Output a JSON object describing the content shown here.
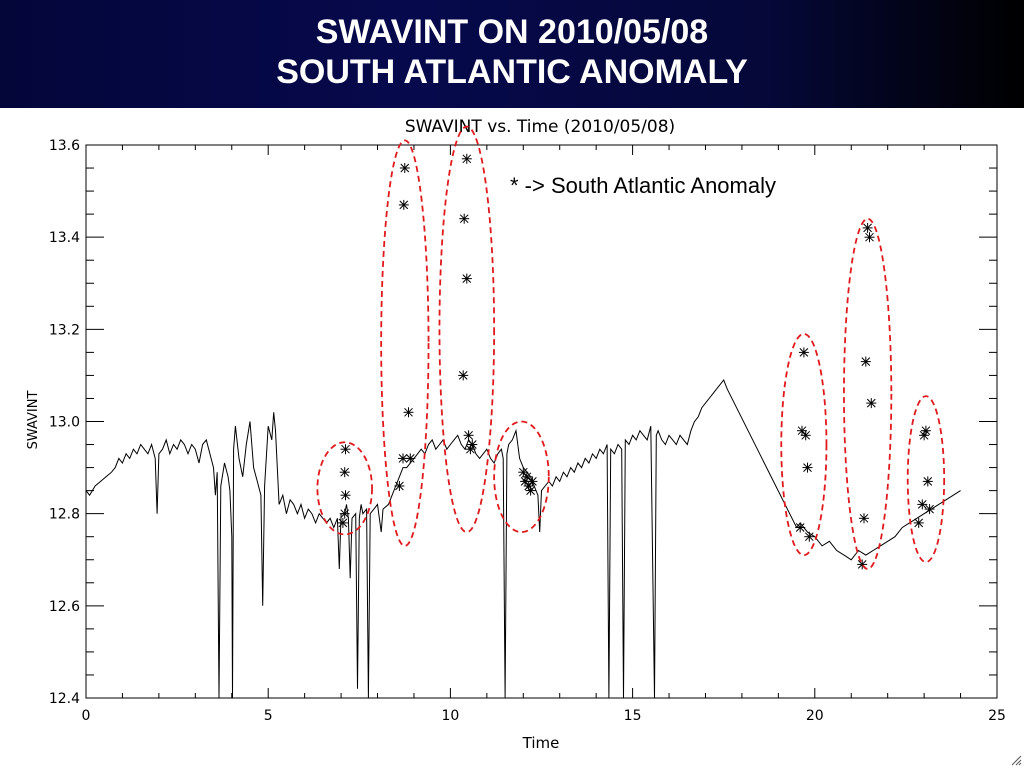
{
  "header": {
    "line1": "SWAVINT ON 2010/05/08",
    "line2": "SOUTH ATLANTIC ANOMALY"
  },
  "chart_data": {
    "type": "line",
    "title": "SWAVINT vs. Time (2010/05/08)",
    "xlabel": "Time",
    "ylabel": "SWAVINT",
    "xlim": [
      0,
      25
    ],
    "ylim": [
      12.4,
      13.6
    ],
    "xticks": [
      0,
      5,
      10,
      15,
      20,
      25
    ],
    "yticks": [
      12.4,
      12.6,
      12.8,
      13.0,
      13.2,
      13.4,
      13.6
    ],
    "ytick_labels": [
      "12.4",
      "12.6",
      "12.8",
      "13.0",
      "13.2",
      "13.4",
      "13.6"
    ],
    "annotation": "* -> South Atlantic Anomaly",
    "grid": false,
    "colors": {
      "line": "#000000",
      "marker": "#000000",
      "ellipse": "#e0191b"
    },
    "series": [
      {
        "values": [
          [
            0.0,
            12.85
          ],
          [
            0.1,
            12.84
          ],
          [
            0.25,
            12.86
          ],
          [
            0.4,
            12.87
          ],
          [
            0.55,
            12.88
          ],
          [
            0.7,
            12.89
          ],
          [
            0.8,
            12.9
          ],
          [
            0.9,
            12.92
          ],
          [
            1.0,
            12.91
          ],
          [
            1.1,
            12.93
          ],
          [
            1.2,
            12.92
          ],
          [
            1.3,
            12.94
          ],
          [
            1.4,
            12.93
          ],
          [
            1.5,
            12.95
          ],
          [
            1.6,
            12.94
          ],
          [
            1.7,
            12.93
          ],
          [
            1.8,
            12.95
          ],
          [
            1.9,
            12.92
          ],
          [
            1.95,
            12.8
          ],
          [
            2.0,
            12.93
          ],
          [
            2.1,
            12.94
          ],
          [
            2.2,
            12.96
          ],
          [
            2.3,
            12.93
          ],
          [
            2.4,
            12.95
          ],
          [
            2.5,
            12.94
          ],
          [
            2.6,
            12.96
          ],
          [
            2.7,
            12.95
          ],
          [
            2.8,
            12.93
          ],
          [
            2.9,
            12.95
          ],
          [
            3.0,
            12.94
          ],
          [
            3.1,
            12.91
          ],
          [
            3.2,
            12.95
          ],
          [
            3.3,
            12.96
          ],
          [
            3.4,
            12.93
          ],
          [
            3.5,
            12.9
          ],
          [
            3.55,
            12.84
          ],
          [
            3.6,
            12.89
          ],
          [
            3.65,
            12.4
          ],
          [
            3.7,
            12.86
          ],
          [
            3.8,
            12.91
          ],
          [
            3.9,
            12.88
          ],
          [
            3.95,
            12.85
          ],
          [
            4.0,
            12.75
          ],
          [
            4.02,
            12.4
          ],
          [
            4.05,
            12.94
          ],
          [
            4.1,
            12.99
          ],
          [
            4.2,
            12.92
          ],
          [
            4.3,
            12.88
          ],
          [
            4.4,
            12.95
          ],
          [
            4.5,
            13.0
          ],
          [
            4.6,
            12.9
          ],
          [
            4.7,
            12.87
          ],
          [
            4.8,
            12.84
          ],
          [
            4.85,
            12.6
          ],
          [
            4.9,
            12.86
          ],
          [
            5.0,
            12.99
          ],
          [
            5.1,
            12.96
          ],
          [
            5.15,
            13.02
          ],
          [
            5.2,
            12.98
          ],
          [
            5.3,
            12.82
          ],
          [
            5.4,
            12.84
          ],
          [
            5.5,
            12.8
          ],
          [
            5.6,
            12.83
          ],
          [
            5.7,
            12.82
          ],
          [
            5.8,
            12.8
          ],
          [
            5.9,
            12.82
          ],
          [
            6.0,
            12.79
          ],
          [
            6.1,
            12.81
          ],
          [
            6.2,
            12.8
          ],
          [
            6.3,
            12.78
          ],
          [
            6.4,
            12.8
          ],
          [
            6.5,
            12.79
          ],
          [
            6.6,
            12.78
          ],
          [
            6.7,
            12.79
          ],
          [
            6.8,
            12.77
          ],
          [
            6.9,
            12.79
          ],
          [
            6.95,
            12.68
          ],
          [
            7.0,
            12.8
          ],
          [
            7.1,
            12.8
          ],
          [
            7.15,
            12.82
          ],
          [
            7.2,
            12.79
          ],
          [
            7.25,
            12.66
          ],
          [
            7.3,
            12.79
          ],
          [
            7.4,
            12.8
          ],
          [
            7.45,
            12.42
          ],
          [
            7.5,
            12.79
          ],
          [
            7.55,
            12.82
          ],
          [
            7.6,
            12.8
          ],
          [
            7.7,
            12.81
          ],
          [
            7.75,
            12.4
          ],
          [
            7.8,
            12.8
          ],
          [
            7.9,
            12.81
          ],
          [
            8.0,
            12.82
          ],
          [
            8.1,
            12.76
          ],
          [
            8.15,
            12.81
          ],
          [
            8.3,
            12.82
          ],
          [
            8.4,
            12.84
          ],
          [
            8.5,
            12.86
          ],
          [
            8.6,
            12.88
          ],
          [
            8.7,
            12.9
          ],
          [
            8.8,
            12.9
          ],
          [
            9.0,
            12.92
          ],
          [
            9.1,
            12.93
          ],
          [
            9.2,
            12.94
          ],
          [
            9.3,
            12.93
          ],
          [
            9.4,
            12.95
          ],
          [
            9.5,
            12.96
          ],
          [
            9.6,
            12.94
          ],
          [
            9.7,
            12.95
          ],
          [
            9.8,
            12.96
          ],
          [
            9.9,
            12.94
          ],
          [
            10.0,
            12.95
          ],
          [
            10.1,
            12.96
          ],
          [
            10.2,
            12.97
          ],
          [
            10.3,
            12.95
          ],
          [
            10.4,
            12.94
          ],
          [
            10.5,
            12.96
          ],
          [
            10.6,
            12.95
          ],
          [
            10.7,
            12.93
          ],
          [
            10.8,
            12.92
          ],
          [
            10.9,
            12.93
          ],
          [
            11.0,
            12.94
          ],
          [
            11.1,
            12.92
          ],
          [
            11.2,
            12.91
          ],
          [
            11.3,
            12.93
          ],
          [
            11.4,
            12.94
          ],
          [
            11.45,
            12.92
          ],
          [
            11.5,
            12.4
          ],
          [
            11.55,
            12.93
          ],
          [
            11.6,
            12.95
          ],
          [
            11.7,
            12.96
          ],
          [
            11.8,
            12.98
          ],
          [
            11.9,
            12.92
          ],
          [
            12.0,
            12.9
          ],
          [
            12.2,
            12.88
          ],
          [
            12.3,
            12.86
          ],
          [
            12.4,
            12.84
          ],
          [
            12.45,
            12.76
          ],
          [
            12.5,
            12.85
          ],
          [
            12.6,
            12.86
          ],
          [
            12.7,
            12.87
          ],
          [
            12.8,
            12.86
          ],
          [
            12.9,
            12.88
          ],
          [
            13.0,
            12.87
          ],
          [
            13.1,
            12.89
          ],
          [
            13.2,
            12.88
          ],
          [
            13.3,
            12.9
          ],
          [
            13.4,
            12.89
          ],
          [
            13.5,
            12.91
          ],
          [
            13.6,
            12.9
          ],
          [
            13.7,
            12.92
          ],
          [
            13.8,
            12.91
          ],
          [
            13.9,
            12.93
          ],
          [
            14.0,
            12.92
          ],
          [
            14.1,
            12.94
          ],
          [
            14.2,
            12.93
          ],
          [
            14.3,
            12.95
          ],
          [
            14.35,
            12.4
          ],
          [
            14.4,
            12.94
          ],
          [
            14.5,
            12.93
          ],
          [
            14.6,
            12.95
          ],
          [
            14.7,
            12.94
          ],
          [
            14.75,
            12.4
          ],
          [
            14.8,
            12.96
          ],
          [
            14.9,
            12.95
          ],
          [
            15.0,
            12.97
          ],
          [
            15.1,
            12.96
          ],
          [
            15.2,
            12.98
          ],
          [
            15.3,
            12.97
          ],
          [
            15.4,
            12.96
          ],
          [
            15.5,
            12.99
          ],
          [
            15.6,
            12.4
          ],
          [
            15.65,
            12.97
          ],
          [
            15.7,
            12.98
          ],
          [
            15.8,
            12.96
          ],
          [
            15.9,
            12.95
          ],
          [
            16.0,
            12.97
          ],
          [
            16.1,
            12.96
          ],
          [
            16.2,
            12.95
          ],
          [
            16.3,
            12.97
          ],
          [
            16.4,
            12.96
          ],
          [
            16.5,
            12.95
          ],
          [
            16.6,
            12.98
          ],
          [
            16.7,
            13.0
          ],
          [
            16.8,
            13.01
          ],
          [
            16.9,
            13.03
          ],
          [
            17.0,
            13.04
          ],
          [
            17.1,
            13.05
          ],
          [
            17.2,
            13.06
          ],
          [
            17.3,
            13.07
          ],
          [
            17.4,
            13.08
          ],
          [
            17.5,
            13.09
          ],
          [
            17.6,
            13.07
          ],
          [
            19.5,
            12.77
          ],
          [
            19.6,
            12.78
          ],
          [
            19.8,
            12.76
          ],
          [
            20.0,
            12.75
          ],
          [
            20.2,
            12.73
          ],
          [
            20.4,
            12.74
          ],
          [
            20.6,
            12.72
          ],
          [
            20.8,
            12.71
          ],
          [
            21.0,
            12.7
          ],
          [
            21.2,
            12.72
          ],
          [
            21.4,
            12.71
          ],
          [
            21.6,
            12.72
          ],
          [
            21.8,
            12.73
          ],
          [
            22.0,
            12.74
          ],
          [
            22.2,
            12.75
          ],
          [
            22.4,
            12.77
          ],
          [
            22.6,
            12.78
          ],
          [
            22.8,
            12.79
          ],
          [
            23.0,
            12.8
          ],
          [
            23.2,
            12.81
          ],
          [
            23.4,
            12.82
          ],
          [
            23.6,
            12.83
          ],
          [
            23.8,
            12.84
          ],
          [
            24.0,
            12.85
          ]
        ]
      }
    ],
    "saa_markers": [
      [
        7.05,
        12.78
      ],
      [
        7.1,
        12.8
      ],
      [
        7.12,
        12.84
      ],
      [
        7.1,
        12.89
      ],
      [
        7.12,
        12.94
      ],
      [
        8.6,
        12.86
      ],
      [
        8.7,
        12.92
      ],
      [
        8.72,
        13.47
      ],
      [
        8.75,
        13.55
      ],
      [
        8.85,
        13.02
      ],
      [
        8.9,
        12.92
      ],
      [
        10.35,
        13.1
      ],
      [
        10.38,
        13.44
      ],
      [
        10.45,
        13.31
      ],
      [
        10.45,
        13.57
      ],
      [
        10.5,
        12.97
      ],
      [
        10.55,
        12.94
      ],
      [
        10.6,
        12.95
      ],
      [
        12.0,
        12.89
      ],
      [
        12.05,
        12.87
      ],
      [
        12.1,
        12.88
      ],
      [
        12.15,
        12.86
      ],
      [
        12.2,
        12.85
      ],
      [
        12.25,
        12.87
      ],
      [
        19.6,
        12.77
      ],
      [
        19.65,
        12.98
      ],
      [
        19.7,
        13.15
      ],
      [
        19.75,
        12.97
      ],
      [
        19.8,
        12.9
      ],
      [
        19.85,
        12.75
      ],
      [
        21.3,
        12.69
      ],
      [
        21.35,
        12.79
      ],
      [
        21.4,
        13.13
      ],
      [
        21.45,
        13.42
      ],
      [
        21.5,
        13.4
      ],
      [
        21.55,
        13.04
      ],
      [
        22.85,
        12.78
      ],
      [
        22.95,
        12.82
      ],
      [
        23.0,
        12.97
      ],
      [
        23.05,
        12.98
      ],
      [
        23.1,
        12.87
      ],
      [
        23.15,
        12.81
      ]
    ],
    "saa_groups": [
      {
        "x_center": 7.1,
        "y_center": 12.855,
        "x_radius": 0.75,
        "y_radius": 0.1
      },
      {
        "x_center": 8.75,
        "y_center": 13.17,
        "x_radius": 0.65,
        "y_radius": 0.44
      },
      {
        "x_center": 10.45,
        "y_center": 13.2,
        "x_radius": 0.75,
        "y_radius": 0.44
      },
      {
        "x_center": 11.95,
        "y_center": 12.88,
        "x_radius": 0.75,
        "y_radius": 0.12
      },
      {
        "x_center": 19.7,
        "y_center": 12.95,
        "x_radius": 0.62,
        "y_radius": 0.24
      },
      {
        "x_center": 21.45,
        "y_center": 13.06,
        "x_radius": 0.65,
        "y_radius": 0.38
      },
      {
        "x_center": 23.05,
        "y_center": 12.875,
        "x_radius": 0.5,
        "y_radius": 0.18
      }
    ]
  }
}
